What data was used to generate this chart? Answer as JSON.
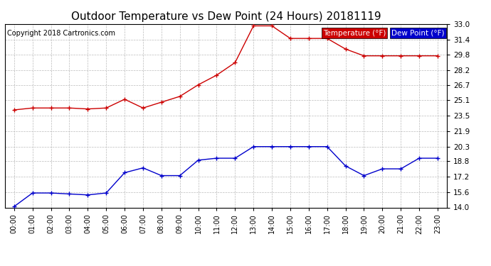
{
  "title": "Outdoor Temperature vs Dew Point (24 Hours) 20181119",
  "copyright": "Copyright 2018 Cartronics.com",
  "legend_dew": "Dew Point (°F)",
  "legend_temp": "Temperature (°F)",
  "hours": [
    "00:00",
    "01:00",
    "02:00",
    "03:00",
    "04:00",
    "05:00",
    "06:00",
    "07:00",
    "08:00",
    "09:00",
    "10:00",
    "11:00",
    "12:00",
    "13:00",
    "14:00",
    "15:00",
    "16:00",
    "17:00",
    "18:00",
    "19:00",
    "20:00",
    "21:00",
    "22:00",
    "23:00"
  ],
  "temperature": [
    24.1,
    24.3,
    24.3,
    24.3,
    24.2,
    24.3,
    25.2,
    24.3,
    24.9,
    25.5,
    26.7,
    27.7,
    29.0,
    32.8,
    32.8,
    31.5,
    31.5,
    31.5,
    30.4,
    29.7,
    29.7,
    29.7,
    29.7,
    29.7
  ],
  "dew_point": [
    14.1,
    15.5,
    15.5,
    15.4,
    15.3,
    15.5,
    17.6,
    18.1,
    17.3,
    17.3,
    18.9,
    19.1,
    19.1,
    20.3,
    20.3,
    20.3,
    20.3,
    20.3,
    18.3,
    17.3,
    18.0,
    18.0,
    19.1,
    19.1
  ],
  "temp_color": "#cc0000",
  "dew_color": "#0000cc",
  "ylim_min": 14.0,
  "ylim_max": 33.0,
  "yticks": [
    14.0,
    15.6,
    17.2,
    18.8,
    20.3,
    21.9,
    23.5,
    25.1,
    26.7,
    28.2,
    29.8,
    31.4,
    33.0
  ],
  "bg_color": "#ffffff",
  "grid_color": "#bbbbbb",
  "title_fontsize": 11,
  "copyright_fontsize": 7,
  "legend_bg_dew": "#0000cc",
  "legend_bg_temp": "#cc0000",
  "legend_text_color": "#ffffff"
}
